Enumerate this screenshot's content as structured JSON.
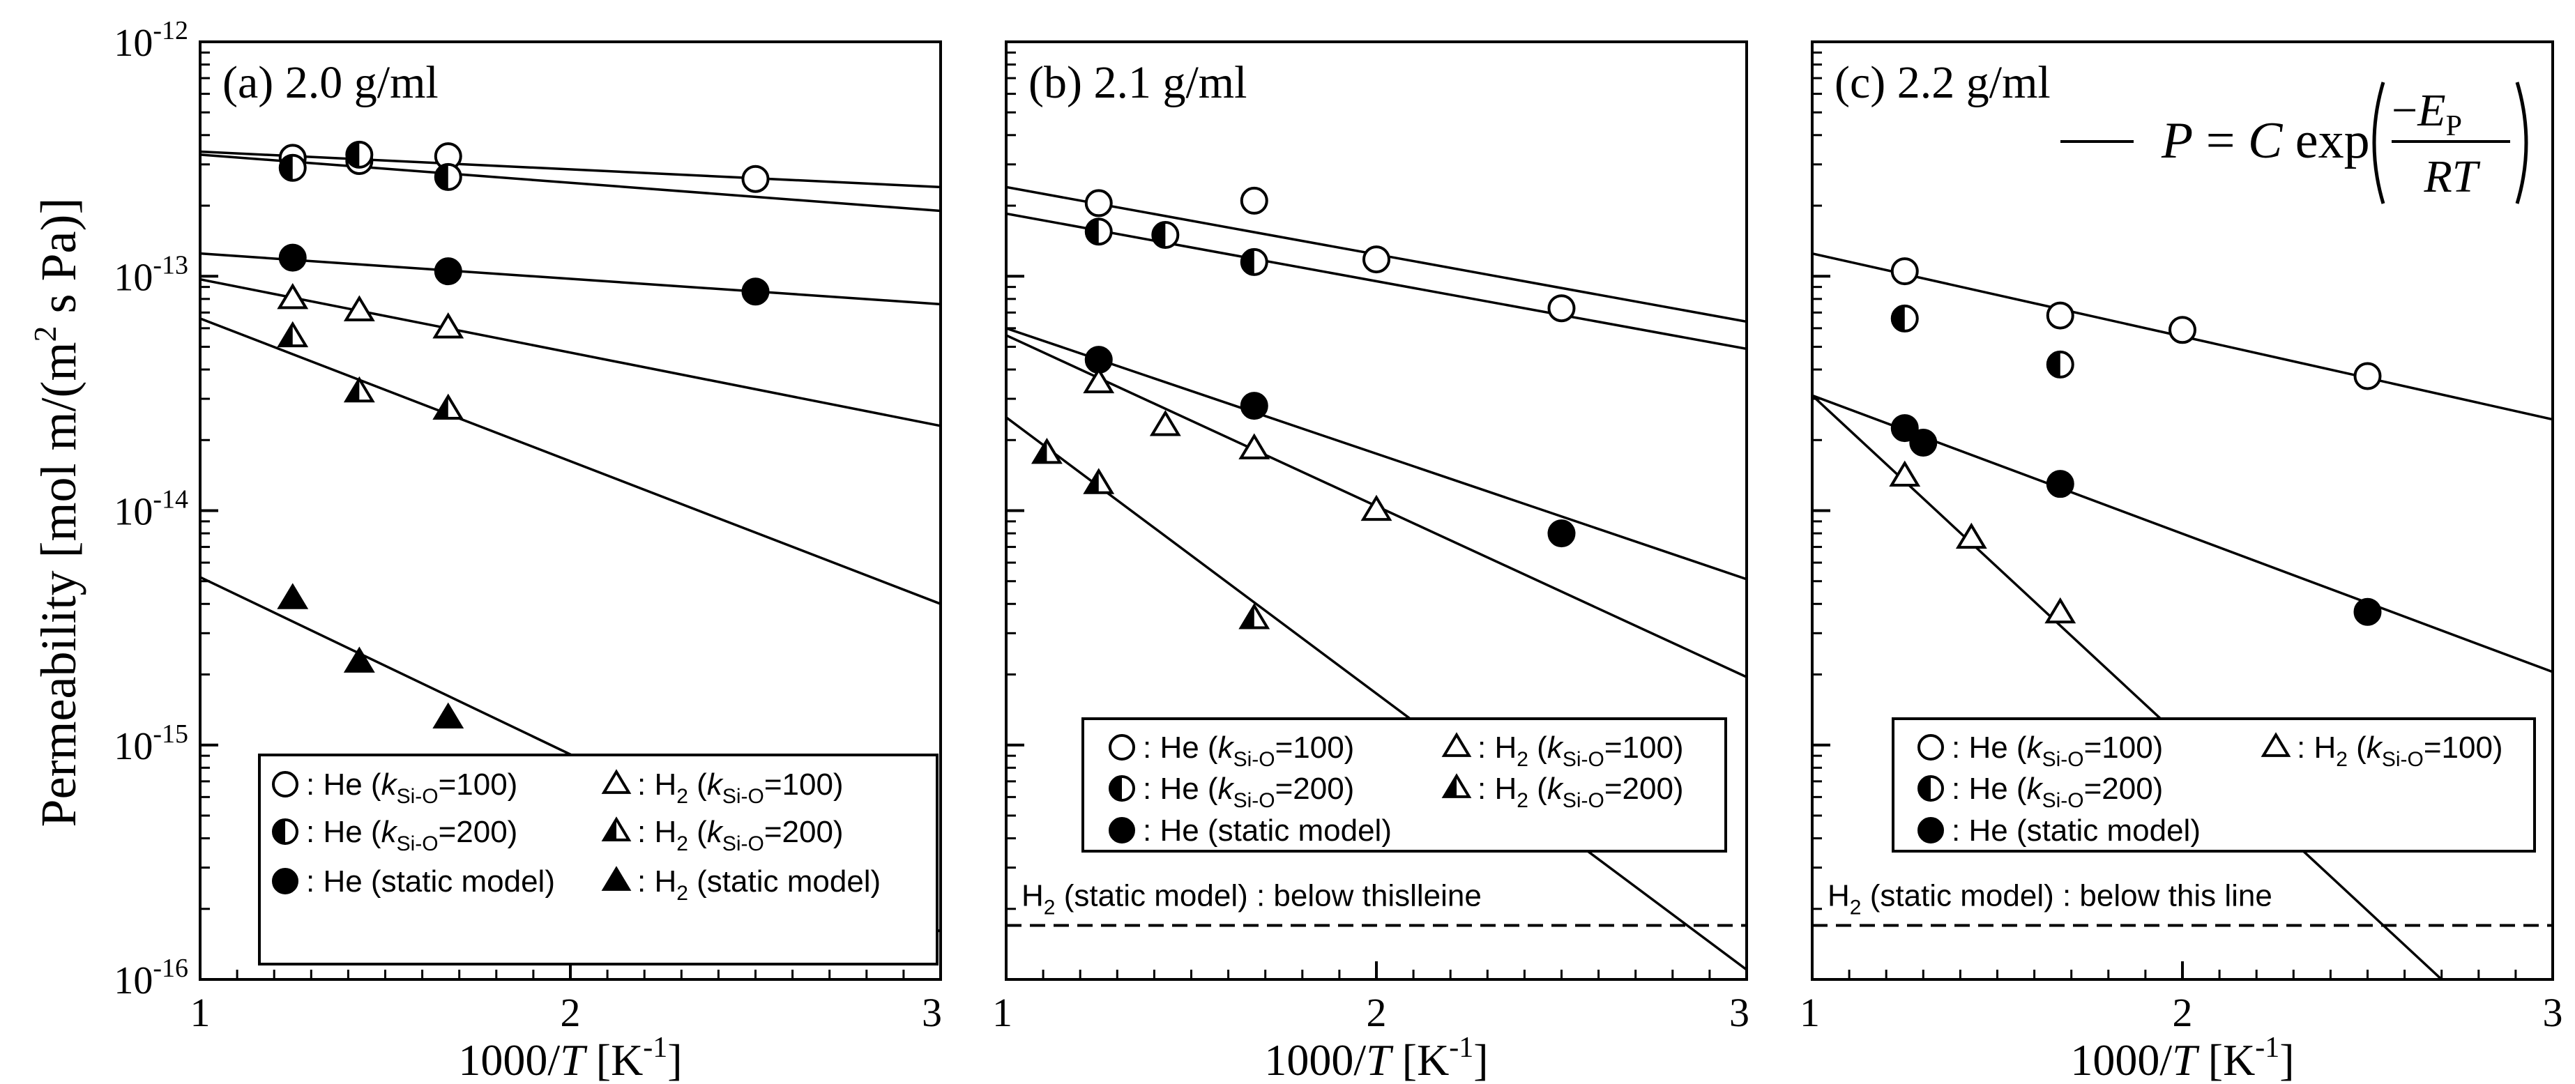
{
  "figure": {
    "ylabel_main": "Permeability [mol m/(m",
    "ylabel_sup": "2",
    "ylabel_end": " s Pa)]",
    "xlabel_main": "1000/",
    "xlabel_var": "T",
    "xlabel_unit": " [K",
    "xlabel_sup": "-1",
    "xlabel_end": "]",
    "equation": {
      "lhs": "P",
      "eq": " = ",
      "coef": "C",
      "func": " exp",
      "num_minus": "−",
      "num_var": "E",
      "num_sub": "P",
      "den": "RT"
    },
    "colors": {
      "axis": "#000000",
      "open_fill": "#ffffff",
      "filled": "#000000"
    }
  },
  "chart_data": [
    {
      "type": "scatter",
      "panel": "a",
      "title": "(a) 2.0 g/ml",
      "xlabel": "1000/T [K-1]",
      "ylabel": "Permeability [mol m/(m2 s Pa)]",
      "yscale": "log",
      "xlim": [
        1,
        3
      ],
      "ylim": [
        1e-16,
        1e-12
      ],
      "xticks": [
        "1",
        "2",
        "3"
      ],
      "yticks": [
        {
          "base": "10",
          "exp": "-16"
        },
        {
          "base": "10",
          "exp": "-15"
        },
        {
          "base": "10",
          "exp": "-14"
        },
        {
          "base": "10",
          "exp": "-13"
        },
        {
          "base": "10",
          "exp": "-12"
        }
      ],
      "series": [
        {
          "name": "He (kSi-O=100)",
          "marker": "circle-open",
          "points": [
            [
              1.25,
              3.2e-13
            ],
            [
              1.43,
              3.1e-13
            ],
            [
              1.67,
              3.25e-13
            ],
            [
              2.5,
              2.6e-13
            ]
          ],
          "fit": [
            [
              1,
              3.4e-13
            ],
            [
              3,
              2.4e-13
            ]
          ]
        },
        {
          "name": "He (kSi-O=200)",
          "marker": "circle-half",
          "points": [
            [
              1.25,
              2.9e-13
            ],
            [
              1.43,
              3.3e-13
            ],
            [
              1.67,
              2.65e-13
            ]
          ],
          "fit": [
            [
              1,
              3.3e-13
            ],
            [
              3,
              1.9e-13
            ]
          ]
        },
        {
          "name": "He (static model)",
          "marker": "circle-filled",
          "points": [
            [
              1.25,
              1.2e-13
            ],
            [
              1.67,
              1.05e-13
            ],
            [
              2.5,
              8.6e-14
            ]
          ],
          "fit": [
            [
              1,
              1.25e-13
            ],
            [
              3,
              7.6e-14
            ]
          ]
        },
        {
          "name": "H2 (kSi-O=100)",
          "marker": "triangle-open",
          "points": [
            [
              1.25,
              8e-14
            ],
            [
              1.43,
              7.1e-14
            ],
            [
              1.67,
              6e-14
            ]
          ],
          "fit": [
            [
              1,
              9.7e-14
            ],
            [
              3,
              2.3e-14
            ]
          ]
        },
        {
          "name": "H2 (kSi-O=200)",
          "marker": "triangle-half",
          "points": [
            [
              1.25,
              5.5e-14
            ],
            [
              1.43,
              3.2e-14
            ],
            [
              1.67,
              2.7e-14
            ]
          ],
          "fit": [
            [
              1,
              6.6e-14
            ],
            [
              3,
              4e-15
            ]
          ]
        },
        {
          "name": "H2 (static model)",
          "marker": "triangle-filled",
          "points": [
            [
              1.25,
              4.2e-15
            ],
            [
              1.43,
              2.25e-15
            ],
            [
              1.67,
              1.3e-15
            ]
          ],
          "fit": [
            [
              1,
              5.2e-15
            ],
            [
              3,
              1.6e-16
            ]
          ]
        }
      ],
      "legend": [
        {
          "marker": "circle-open",
          "pre": " : He (",
          "k": "k",
          "sub": "Si-O",
          "post": "=100)"
        },
        {
          "marker": "triangle-open",
          "pre": " : H",
          "h2sub": "2",
          "pre2": " (",
          "k": "k",
          "sub": "Si-O",
          "post": "=100)"
        },
        {
          "marker": "circle-half",
          "pre": " : He (",
          "k": "k",
          "sub": "Si-O",
          "post": "=200)"
        },
        {
          "marker": "triangle-half",
          "pre": " : H",
          "h2sub": "2",
          "pre2": " (",
          "k": "k",
          "sub": "Si-O",
          "post": "=200)"
        },
        {
          "marker": "circle-filled",
          "pre": " : He (static model)"
        },
        {
          "marker": "triangle-filled",
          "pre": " : H",
          "h2sub": "2",
          "pre2": " (static model)"
        }
      ]
    },
    {
      "type": "scatter",
      "panel": "b",
      "title": "(b) 2.1 g/ml",
      "xlabel": "1000/T [K-1]",
      "yscale": "log",
      "xlim": [
        1,
        3
      ],
      "ylim": [
        1e-16,
        1e-12
      ],
      "xticks": [
        "1",
        "2",
        "3"
      ],
      "series": [
        {
          "name": "He (kSi-O=100)",
          "marker": "circle-open",
          "points": [
            [
              1.25,
              2.05e-13
            ],
            [
              1.67,
              2.1e-13
            ],
            [
              2.0,
              1.18e-13
            ],
            [
              2.5,
              7.3e-14
            ]
          ],
          "fit": [
            [
              1,
              2.4e-13
            ],
            [
              3,
              6.4e-14
            ]
          ]
        },
        {
          "name": "He (kSi-O=200)",
          "marker": "circle-half",
          "points": [
            [
              1.25,
              1.55e-13
            ],
            [
              1.43,
              1.5e-13
            ],
            [
              1.67,
              1.15e-13
            ]
          ],
          "fit": [
            [
              1,
              1.85e-13
            ],
            [
              3,
              4.9e-14
            ]
          ]
        },
        {
          "name": "He (static model)",
          "marker": "circle-filled",
          "points": [
            [
              1.25,
              4.4e-14
            ],
            [
              1.67,
              2.8e-14
            ],
            [
              2.5,
              8e-15
            ]
          ],
          "fit": [
            [
              1,
              6e-14
            ],
            [
              3,
              5.1e-15
            ]
          ]
        },
        {
          "name": "H2 (kSi-O=100)",
          "marker": "triangle-open",
          "points": [
            [
              1.25,
              3.5e-14
            ],
            [
              1.43,
              2.3e-14
            ],
            [
              1.67,
              1.83e-14
            ],
            [
              2.0,
              1e-14
            ]
          ],
          "fit": [
            [
              1,
              5.6e-14
            ],
            [
              3,
              1.95e-15
            ]
          ]
        },
        {
          "name": "H2 (kSi-O=200)",
          "marker": "triangle-half",
          "points": [
            [
              1.11,
              1.75e-14
            ],
            [
              1.25,
              1.3e-14
            ],
            [
              1.67,
              3.45e-15
            ]
          ],
          "fit": [
            [
              1,
              2.5e-14
            ],
            [
              3,
              1.1e-16
            ]
          ]
        }
      ],
      "legend": [
        {
          "marker": "circle-open",
          "pre": " : He (",
          "k": "k",
          "sub": "Si-O",
          "post": "=100)"
        },
        {
          "marker": "triangle-open",
          "pre": " : H",
          "h2sub": "2",
          "pre2": " (",
          "k": "k",
          "sub": "Si-O",
          "post": "=100)"
        },
        {
          "marker": "circle-half",
          "pre": " : He (",
          "k": "k",
          "sub": "Si-O",
          "post": "=200)"
        },
        {
          "marker": "triangle-half",
          "pre": " : H",
          "h2sub": "2",
          "pre2": " (",
          "k": "k",
          "sub": "Si-O",
          "post": "=200)"
        },
        {
          "marker": "circle-filled",
          "pre": " : He (static model)"
        }
      ],
      "annotation": {
        "h": "H",
        "sub": "2",
        "text": " (static model) : below thislleine",
        "threshold": 1.7e-16
      }
    },
    {
      "type": "scatter",
      "panel": "c",
      "title": "(c) 2.2 g/ml",
      "xlabel": "1000/T [K-1]",
      "yscale": "log",
      "xlim": [
        1,
        3
      ],
      "ylim": [
        1e-16,
        1e-12
      ],
      "xticks": [
        "1",
        "2",
        "3"
      ],
      "series": [
        {
          "name": "He (kSi-O=100)",
          "marker": "circle-open",
          "points": [
            [
              1.25,
              1.05e-13
            ],
            [
              1.67,
              6.8e-14
            ],
            [
              2.0,
              5.9e-14
            ],
            [
              2.5,
              3.75e-14
            ]
          ],
          "fit": [
            [
              1,
              1.25e-13
            ],
            [
              3,
              2.45e-14
            ]
          ]
        },
        {
          "name": "He (kSi-O=200)",
          "marker": "circle-half",
          "points": [
            [
              1.25,
              6.6e-14
            ],
            [
              1.67,
              4.2e-14
            ]
          ],
          "fit": null
        },
        {
          "name": "He (static model)",
          "marker": "circle-filled",
          "points": [
            [
              1.25,
              2.25e-14
            ],
            [
              1.3,
              1.95e-14
            ],
            [
              1.67,
              1.3e-14
            ],
            [
              2.5,
              3.7e-15
            ]
          ],
          "fit": [
            [
              1,
              3.1e-14
            ],
            [
              3,
              2.05e-15
            ]
          ]
        },
        {
          "name": "H2 (kSi-O=100)",
          "marker": "triangle-open",
          "points": [
            [
              1.25,
              1.4e-14
            ],
            [
              1.43,
              7.6e-15
            ],
            [
              1.67,
              3.65e-15
            ]
          ],
          "fit": [
            [
              1,
              3.1e-14
            ],
            [
              2.7,
              1e-16
            ]
          ]
        }
      ],
      "legend": [
        {
          "marker": "circle-open",
          "pre": " : He (",
          "k": "k",
          "sub": "Si-O",
          "post": "=100)"
        },
        {
          "marker": "triangle-open",
          "pre": " : H",
          "h2sub": "2",
          "pre2": " (",
          "k": "k",
          "sub": "Si-O",
          "post": "=100)"
        },
        {
          "marker": "circle-half",
          "pre": " : He (",
          "k": "k",
          "sub": "Si-O",
          "post": "=200)"
        },
        {
          "marker": "circle-filled",
          "pre": " : He (static model)"
        }
      ],
      "annotation": {
        "h": "H",
        "sub": "2",
        "text": " (static model) : below this line",
        "threshold": 1.7e-16
      }
    }
  ]
}
